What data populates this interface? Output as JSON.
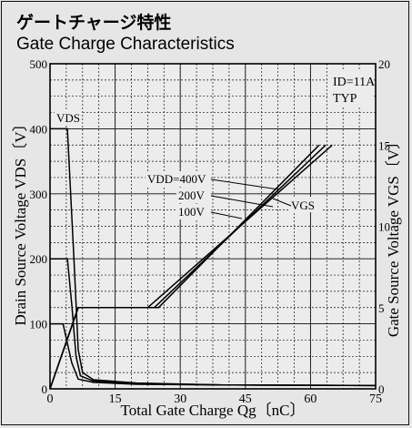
{
  "title_jp": "ゲートチャージ特性",
  "title_en": "Gate Charge Characteristics",
  "chart_data": {
    "type": "line",
    "xlabel": "Total Gate Charge Qg〔nC〕",
    "ylabel_left": "Drain Source Voltage VDS〔V〕",
    "ylabel_right": "Gate Source Voltage VGS〔V〕",
    "xlim": [
      0,
      75
    ],
    "ylim_left": [
      0,
      500
    ],
    "ylim_right": [
      0,
      20
    ],
    "x_ticks": [
      "0",
      "15",
      "30",
      "45",
      "60",
      "75"
    ],
    "y_ticks_left": [
      "0",
      "100",
      "200",
      "300",
      "400",
      "500"
    ],
    "y_ticks_right": [
      "0",
      "5",
      "10",
      "15",
      "20"
    ],
    "grid": true,
    "condition_label": "ID=11A",
    "typ_label": "TYP",
    "vds_label": "VDS",
    "vgs_label": "VGS",
    "vdd_labels": [
      "VDD=400V",
      "200V",
      "100V"
    ],
    "series": [
      {
        "name": "VDS (VDD=400V)",
        "axis": "left",
        "points": [
          [
            0,
            400
          ],
          [
            4,
            400
          ],
          [
            5.5,
            200
          ],
          [
            6.5,
            60
          ],
          [
            7.5,
            25
          ],
          [
            10,
            14
          ],
          [
            20,
            9
          ],
          [
            40,
            6
          ],
          [
            75,
            5
          ]
        ]
      },
      {
        "name": "VDS (VDD=200V)",
        "axis": "left",
        "points": [
          [
            0,
            200
          ],
          [
            4,
            200
          ],
          [
            5,
            130
          ],
          [
            6,
            50
          ],
          [
            7,
            20
          ],
          [
            10,
            12
          ],
          [
            20,
            8
          ],
          [
            40,
            6
          ],
          [
            75,
            5
          ]
        ]
      },
      {
        "name": "VDS (VDD=100V)",
        "axis": "left",
        "points": [
          [
            0,
            100
          ],
          [
            3,
            100
          ],
          [
            5,
            40
          ],
          [
            6.5,
            15
          ],
          [
            10,
            10
          ],
          [
            20,
            7
          ],
          [
            40,
            6
          ],
          [
            75,
            5
          ]
        ]
      },
      {
        "name": "VGS (VDD=400V)",
        "axis": "right",
        "points": [
          [
            0,
            0
          ],
          [
            6.5,
            5
          ],
          [
            25,
            5
          ],
          [
            62,
            15
          ]
        ]
      },
      {
        "name": "VGS (VDD=200V)",
        "axis": "right",
        "points": [
          [
            0,
            0
          ],
          [
            6.5,
            5
          ],
          [
            24,
            5
          ],
          [
            63.5,
            15
          ]
        ]
      },
      {
        "name": "VGS (VDD=100V)",
        "axis": "right",
        "points": [
          [
            0,
            0
          ],
          [
            6.5,
            5
          ],
          [
            22.5,
            5
          ],
          [
            65,
            15
          ]
        ]
      }
    ]
  }
}
